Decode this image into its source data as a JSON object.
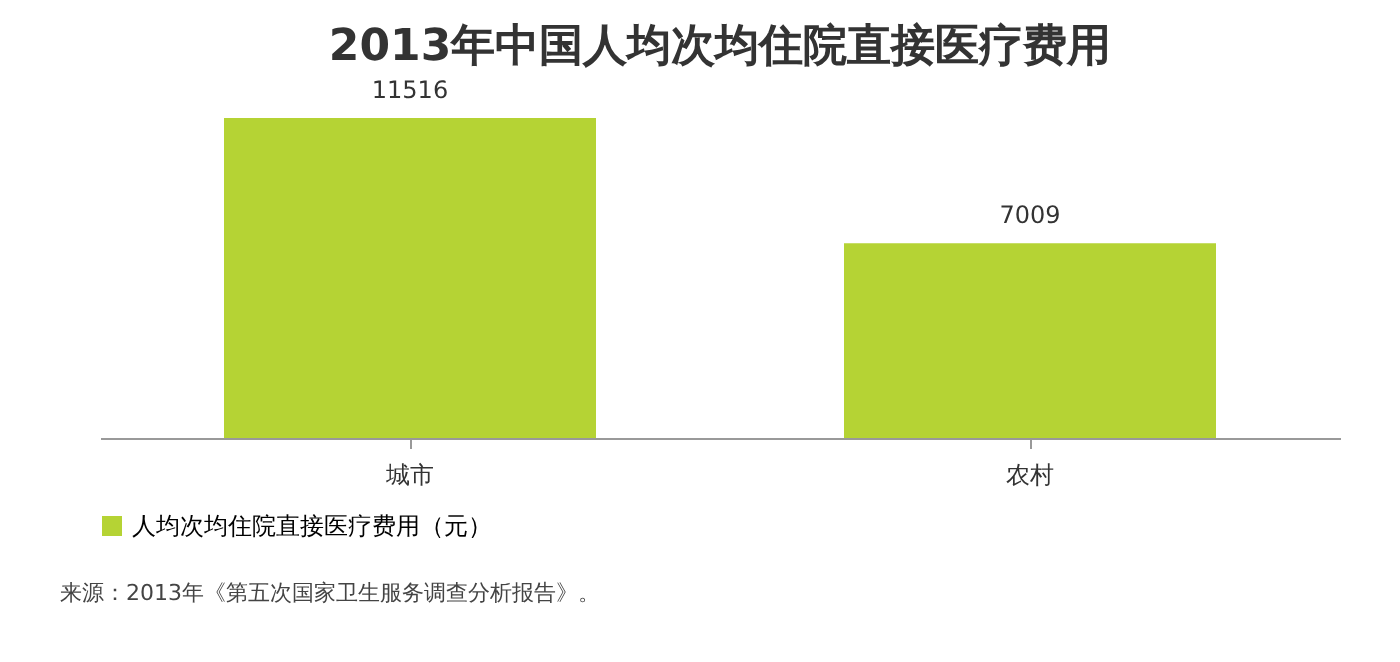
{
  "chart_data": {
    "type": "bar",
    "title": "2013年中国人均次均住院直接医疗费用",
    "categories": [
      "城市",
      "农村"
    ],
    "series": [
      {
        "name": "人均次均住院直接医疗费用（元）",
        "color": "#b5d334",
        "values": [
          11516,
          7009
        ]
      }
    ],
    "data_labels": true,
    "legend": "bottom",
    "annotations": [
      "来源：2013年《第五次国家卫生服务调查分析报告》。"
    ]
  }
}
